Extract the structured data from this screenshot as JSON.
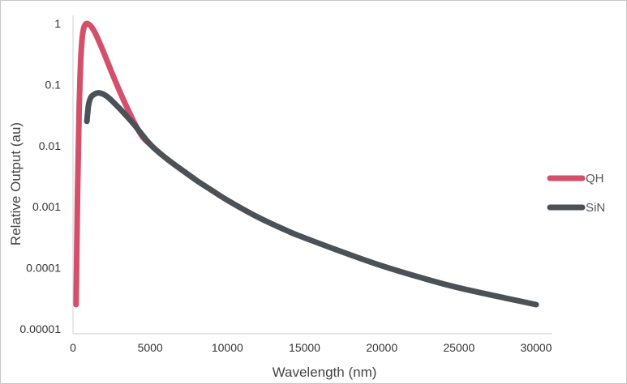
{
  "chart_data": {
    "type": "line",
    "title": "",
    "xlabel": "Wavelength (nm)",
    "ylabel": "Relative Output (au)",
    "x_scale": "linear",
    "y_scale": "log",
    "xlim": [
      0,
      30000
    ],
    "ylim": [
      1e-05,
      1
    ],
    "xticks": [
      0,
      5000,
      10000,
      15000,
      20000,
      25000,
      30000
    ],
    "yticks": [
      1,
      0.1,
      0.01,
      0.001,
      0.0001,
      1e-05
    ],
    "grid": false,
    "legend": "right",
    "series": [
      {
        "name": "QH",
        "color": "#d4506a",
        "x": [
          200,
          300,
          400,
          500,
          600,
          700,
          800,
          900,
          1000,
          1200,
          1500,
          2000,
          2500,
          3000,
          3500,
          4000,
          4500,
          5000
        ],
        "y": [
          2.5e-05,
          0.002,
          0.04,
          0.25,
          0.6,
          0.85,
          0.97,
          1.0,
          0.98,
          0.88,
          0.65,
          0.33,
          0.16,
          0.08,
          0.042,
          0.023,
          0.014,
          0.0105
        ]
      },
      {
        "name": "SiN",
        "color": "#4a5157",
        "x": [
          900,
          1000,
          1100,
          1200,
          1400,
          1600,
          1800,
          2000,
          2200,
          2500,
          3000,
          3500,
          4000,
          5000,
          6000,
          7000,
          8000,
          9000,
          10000,
          12000,
          14000,
          15000,
          17000,
          20000,
          23000,
          25000,
          28000,
          30000
        ],
        "y": [
          0.025,
          0.045,
          0.057,
          0.064,
          0.07,
          0.073,
          0.072,
          0.069,
          0.064,
          0.055,
          0.041,
          0.03,
          0.0215,
          0.0105,
          0.0063,
          0.0041,
          0.0027,
          0.00185,
          0.00128,
          0.00067,
          0.00039,
          0.00031,
          0.0002,
          0.000108,
          6.4e-05,
          4.7e-05,
          3.2e-05,
          2.5e-05
        ]
      }
    ]
  }
}
